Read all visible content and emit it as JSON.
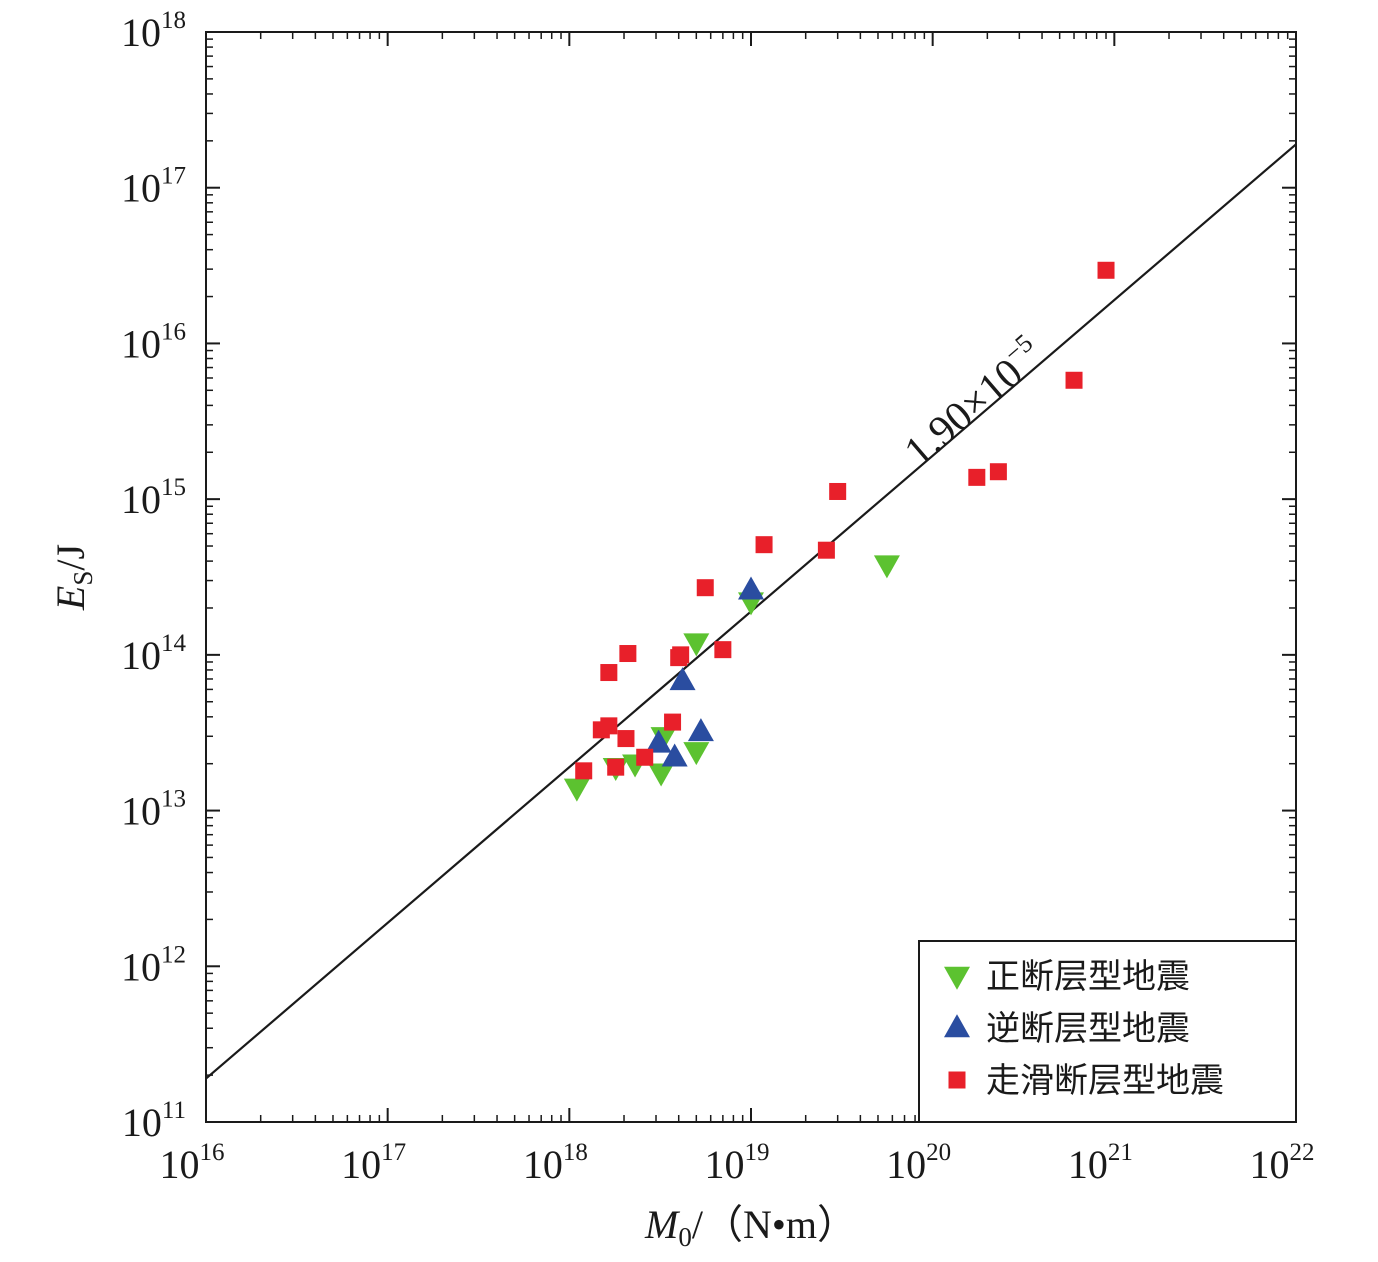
{
  "chart_data": {
    "type": "scatter",
    "x_scale": "log",
    "y_scale": "log",
    "xlim": [
      1e+16,
      1e+22
    ],
    "ylim": [
      100000000000.0,
      1e+18
    ],
    "x_ticks": [
      "16",
      "17",
      "18",
      "19",
      "20",
      "21",
      "22"
    ],
    "y_ticks": [
      "11",
      "12",
      "13",
      "14",
      "15",
      "16",
      "17",
      "18"
    ],
    "tick_base": "10",
    "xlabel": {
      "symbol": "M",
      "sub": "0",
      "unit": "/（N•m）"
    },
    "ylabel": {
      "symbol": "E",
      "sub": "S",
      "unit": "/J"
    },
    "grid": false,
    "legend_position": "bottom-right",
    "fit_line": {
      "label_mantissa": "1.90×10",
      "label_exponent": "−5",
      "ratio": 1.9e-05,
      "color": "#1a1a1a"
    },
    "series": [
      {
        "name": "正断层型地震",
        "marker": "triangle-down",
        "color": "#5cc230",
        "points": [
          [
            1.1e+18,
            14000000000000.0
          ],
          [
            1.8e+18,
            19000000000000.0
          ],
          [
            2.3e+18,
            20000000000000.0
          ],
          [
            3.2e+18,
            17500000000000.0
          ],
          [
            3.3e+18,
            30000000000000.0
          ],
          [
            5e+18,
            24000000000000.0
          ],
          [
            5e+18,
            120000000000000.0
          ],
          [
            1e+19,
            220000000000000.0
          ],
          [
            5.6e+19,
            380000000000000.0
          ]
        ]
      },
      {
        "name": "逆断层型地震",
        "marker": "triangle-up",
        "color": "#2a4da0",
        "points": [
          [
            3.1e+18,
            27000000000000.0
          ],
          [
            3.8e+18,
            22000000000000.0
          ],
          [
            4.2e+18,
            68000000000000.0
          ],
          [
            5.3e+18,
            32000000000000.0
          ],
          [
            1e+19,
            260000000000000.0
          ]
        ]
      },
      {
        "name": "走滑断层型地震",
        "marker": "square",
        "color": "#e8202a",
        "points": [
          [
            1.2e+18,
            18000000000000.0
          ],
          [
            1.5e+18,
            33000000000000.0
          ],
          [
            1.65e+18,
            77000000000000.0
          ],
          [
            1.65e+18,
            35000000000000.0
          ],
          [
            1.8e+18,
            19000000000000.0
          ],
          [
            2.05e+18,
            29000000000000.0
          ],
          [
            2.1e+18,
            102000000000000.0
          ],
          [
            2.6e+18,
            22000000000000.0
          ],
          [
            3.7e+18,
            37000000000000.0
          ],
          [
            4e+18,
            96000000000000.0
          ],
          [
            4.1e+18,
            100000000000000.0
          ],
          [
            5.6e+18,
            270000000000000.0
          ],
          [
            7e+18,
            108000000000000.0
          ],
          [
            1.18e+19,
            510000000000000.0
          ],
          [
            2.6e+19,
            470000000000000.0
          ],
          [
            3e+19,
            1120000000000000.0
          ],
          [
            1.75e+20,
            1380000000000000.0
          ],
          [
            2.3e+20,
            1500000000000000.0
          ],
          [
            6e+20,
            5800000000000000.0
          ],
          [
            9e+20,
            2.95e+16
          ]
        ]
      }
    ]
  }
}
